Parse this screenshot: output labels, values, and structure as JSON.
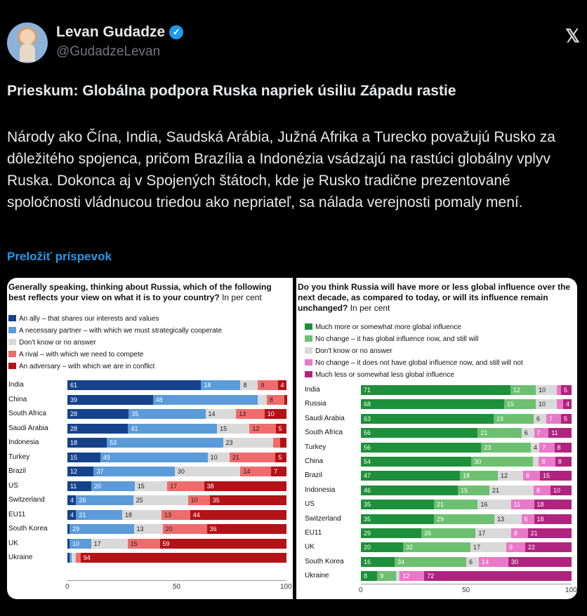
{
  "tweet": {
    "author_name": "Levan Gudadze",
    "handle": "@GudadzeLevan",
    "headline": "Prieskum: Globálna podpora Ruska napriek úsiliu Západu rastie",
    "body": "Národy ako Čína, India, Saudská Arábia, Južná Afrika a Turecko považujú Rusko za dôležitého spojenca, pričom Brazília a Indonézia vsádzajú na rastúci globálny vplyv Ruska. Dokonca aj v Spojených štátoch, kde je Rusko tradične prezentované spoločnosti vládnucou triedou ako nepriateľ, sa nálada verejnosti pomaly mení.",
    "translate_link": "Preložiť príspevok",
    "verified_icon": "verified-check-icon",
    "x_logo_icon": "x-logo-icon"
  },
  "chart_data": [
    {
      "type": "bar",
      "orientation": "horizontal-stacked",
      "title": "Generally speaking, thinking about Russia, which of the following best reflects your view on what it is to your country?",
      "unit_note": "In per cent",
      "legend_placement": "top-left",
      "categories": [
        "India",
        "China",
        "South Africa",
        "Saudi Arabia",
        "Indonesia",
        "Turkey",
        "Brazil",
        "US",
        "Switzerland",
        "EU11",
        "South Korea",
        "UK",
        "Ukraine"
      ],
      "series": [
        {
          "name": "An ally – that shares our interests and values",
          "color": "#16428c",
          "values": [
            61,
            39,
            28,
            28,
            18,
            15,
            12,
            11,
            4,
            4,
            1,
            1,
            1
          ]
        },
        {
          "name": "A necessary partner – with which we must strategically cooperate",
          "color": "#5b9bd9",
          "values": [
            18,
            48,
            35,
            41,
            53,
            49,
            37,
            20,
            26,
            21,
            29,
            10,
            1
          ]
        },
        {
          "name": "Don't know or no answer",
          "color": "#d9d9d9",
          "values": [
            8,
            4,
            14,
            15,
            23,
            10,
            30,
            15,
            25,
            18,
            13,
            17,
            2
          ]
        },
        {
          "name": "A rival – with which we need to compete",
          "color": "#ef6c6c",
          "values": [
            9,
            8,
            13,
            12,
            3,
            21,
            14,
            17,
            10,
            13,
            20,
            15,
            2
          ]
        },
        {
          "name": "An adversary – with which we are in conflict",
          "color": "#b31217",
          "values": [
            4,
            1,
            10,
            5,
            3,
            5,
            7,
            38,
            35,
            44,
            36,
            59,
            94
          ]
        }
      ],
      "data_labels": [
        [
          "61",
          "18",
          "8",
          "9",
          "4"
        ],
        [
          "39",
          "48",
          "",
          "8",
          ""
        ],
        [
          "28",
          "35",
          "14",
          "13",
          "10"
        ],
        [
          "28",
          "41",
          "15",
          "12",
          "5"
        ],
        [
          "18",
          "53",
          "23",
          "",
          ""
        ],
        [
          "15",
          "49",
          "10",
          "21",
          "5"
        ],
        [
          "12",
          "37",
          "30",
          "14",
          "7"
        ],
        [
          "11",
          "20",
          "15",
          "17",
          "38"
        ],
        [
          "4",
          "26",
          "25",
          "10",
          "35"
        ],
        [
          "4",
          "21",
          "18",
          "13",
          "44"
        ],
        [
          "",
          "29",
          "13",
          "20",
          "36"
        ],
        [
          "",
          "10",
          "17",
          "15",
          "59"
        ],
        [
          "",
          "",
          "",
          "",
          "94"
        ]
      ],
      "x_ticks": [
        "0",
        "50",
        "100"
      ],
      "xlim": [
        0,
        100
      ]
    },
    {
      "type": "bar",
      "orientation": "horizontal-stacked",
      "title": "Do you think Russia will have more or less global influence over the next decade, as compared to today, or will its influence remain unchanged?",
      "unit_note": "In per cent",
      "legend_placement": "top-left",
      "categories": [
        "India",
        "Russia",
        "Saudi Arabia",
        "South Africa",
        "Turkey",
        "China",
        "Brazil",
        "Indonesia",
        "US",
        "Switzerland",
        "EU11",
        "UK",
        "South Korea",
        "Ukraine"
      ],
      "series": [
        {
          "name": "Much more or somewhat more global influence",
          "color": "#1e8f3a",
          "values": [
            71,
            68,
            63,
            56,
            56,
            54,
            47,
            46,
            35,
            35,
            29,
            20,
            16,
            8
          ]
        },
        {
          "name": "No change – it has global influence now, and still will",
          "color": "#6cc070",
          "values": [
            12,
            15,
            19,
            21,
            23,
            30,
            18,
            15,
            21,
            29,
            26,
            32,
            34,
            9
          ]
        },
        {
          "name": "Don't know or no answer",
          "color": "#d9d9d9",
          "values": [
            10,
            10,
            6,
            6,
            4,
            3,
            12,
            21,
            16,
            13,
            17,
            17,
            6,
            2
          ]
        },
        {
          "name": "No change – it does not have global influence now, and still will not",
          "color": "#e879c8",
          "values": [
            2,
            3,
            7,
            7,
            7,
            8,
            8,
            8,
            11,
            6,
            8,
            9,
            14,
            12
          ]
        },
        {
          "name": "Much less or somewhat less global influence",
          "color": "#b0237e",
          "values": [
            5,
            4,
            5,
            11,
            8,
            8,
            15,
            10,
            18,
            18,
            21,
            22,
            30,
            72
          ]
        }
      ],
      "data_labels": [
        [
          "71",
          "12",
          "10",
          "",
          "5"
        ],
        [
          "68",
          "15",
          "10",
          "",
          "4"
        ],
        [
          "63",
          "19",
          "6",
          "7",
          "5"
        ],
        [
          "56",
          "21",
          "6",
          "7",
          "11"
        ],
        [
          "56",
          "23",
          "4",
          "7",
          "8"
        ],
        [
          "54",
          "30",
          "",
          "8",
          "8"
        ],
        [
          "47",
          "18",
          "12",
          "8",
          "15"
        ],
        [
          "46",
          "15",
          "21",
          "8",
          "10"
        ],
        [
          "35",
          "21",
          "16",
          "11",
          "18"
        ],
        [
          "35",
          "29",
          "13",
          "6",
          "18"
        ],
        [
          "29",
          "26",
          "17",
          "8",
          "21"
        ],
        [
          "20",
          "32",
          "17",
          "9",
          "22"
        ],
        [
          "16",
          "34",
          "6",
          "14",
          "30"
        ],
        [
          "8",
          "9",
          "",
          "12",
          "72"
        ]
      ],
      "x_ticks": [
        "0",
        "50",
        "100"
      ],
      "xlim": [
        0,
        100
      ]
    }
  ]
}
